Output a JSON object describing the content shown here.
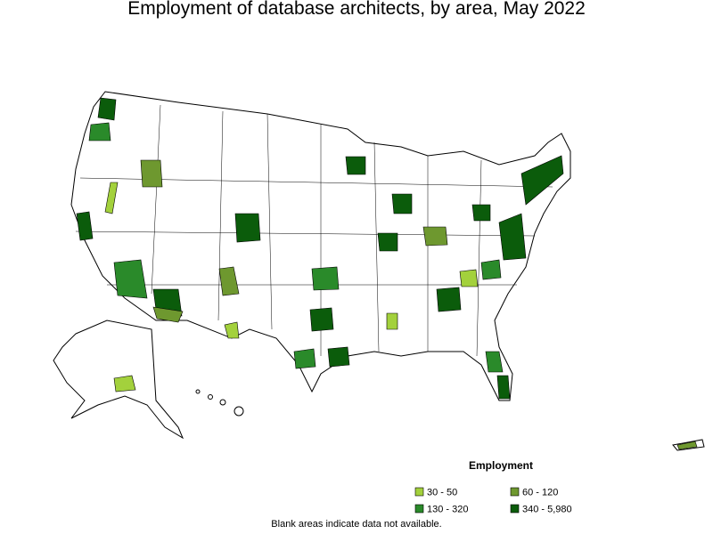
{
  "map": {
    "title": "Employment of database architects, by area, May 2022",
    "legend": {
      "title": "Employment",
      "items": [
        {
          "label": "30 - 50",
          "color": "#a3d13c"
        },
        {
          "label": "60 - 120",
          "color": "#6e982f"
        },
        {
          "label": "130 - 320",
          "color": "#2a8a2a"
        },
        {
          "label": "340 - 5,980",
          "color": "#0b5c0b"
        }
      ]
    },
    "note": "Blank areas indicate data not available."
  }
}
